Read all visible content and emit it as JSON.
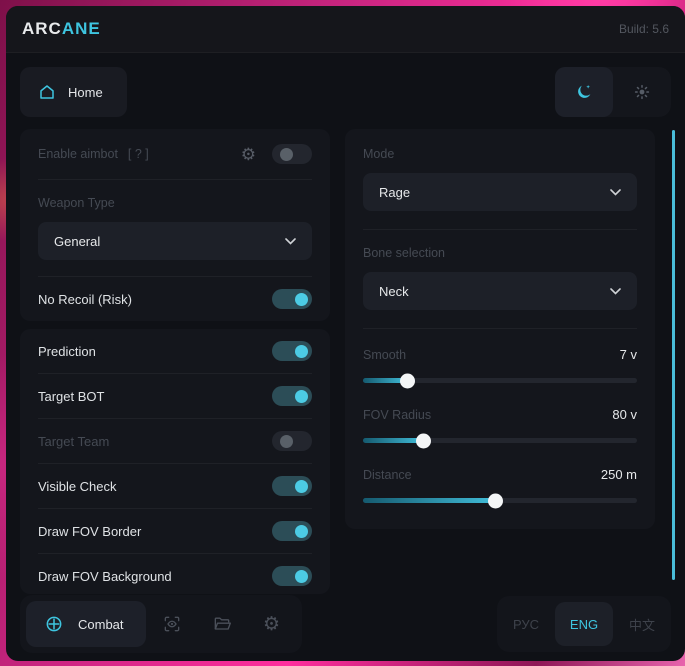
{
  "header": {
    "brand_prefix": "ARC",
    "brand_suffix": "ANE",
    "build": "Build: 5.6"
  },
  "nav": {
    "home_label": "Home",
    "dark_mode_active": true
  },
  "aimbot_card": {
    "enable_label": "Enable aimbot",
    "help_hint": "[ ? ]",
    "enable_on": false,
    "weapon_type_label": "Weapon Type",
    "weapon_type_value": "General",
    "no_recoil_label": "No Recoil (Risk)",
    "no_recoil_on": true
  },
  "toggle_card": {
    "rows": [
      {
        "label": "Prediction",
        "on": true,
        "disabled": false
      },
      {
        "label": "Target BOT",
        "on": true,
        "disabled": false
      },
      {
        "label": "Target Team",
        "on": false,
        "disabled": true
      },
      {
        "label": "Visible Check",
        "on": true,
        "disabled": false
      },
      {
        "label": "Draw FOV Border",
        "on": true,
        "disabled": false
      },
      {
        "label": "Draw FOV Background",
        "on": true,
        "disabled": false
      }
    ]
  },
  "aim_settings_card": {
    "mode_label": "Mode",
    "mode_value": "Rage",
    "bone_label": "Bone selection",
    "bone_value": "Neck",
    "sliders": [
      {
        "label": "Smooth",
        "value": "7 v",
        "percent": 16
      },
      {
        "label": "FOV Radius",
        "value": "80 v",
        "percent": 22
      },
      {
        "label": "Distance",
        "value": "250 m",
        "percent": 48
      }
    ]
  },
  "footer": {
    "combat_label": "Combat",
    "languages": [
      {
        "label": "РУС",
        "active": false
      },
      {
        "label": "ENG",
        "active": true
      },
      {
        "label": "中文",
        "active": false
      }
    ]
  },
  "colors": {
    "accent": "#3ec5e0",
    "toggle_on_track": "#2c4d57",
    "scrollbar": "#49bdd8"
  }
}
